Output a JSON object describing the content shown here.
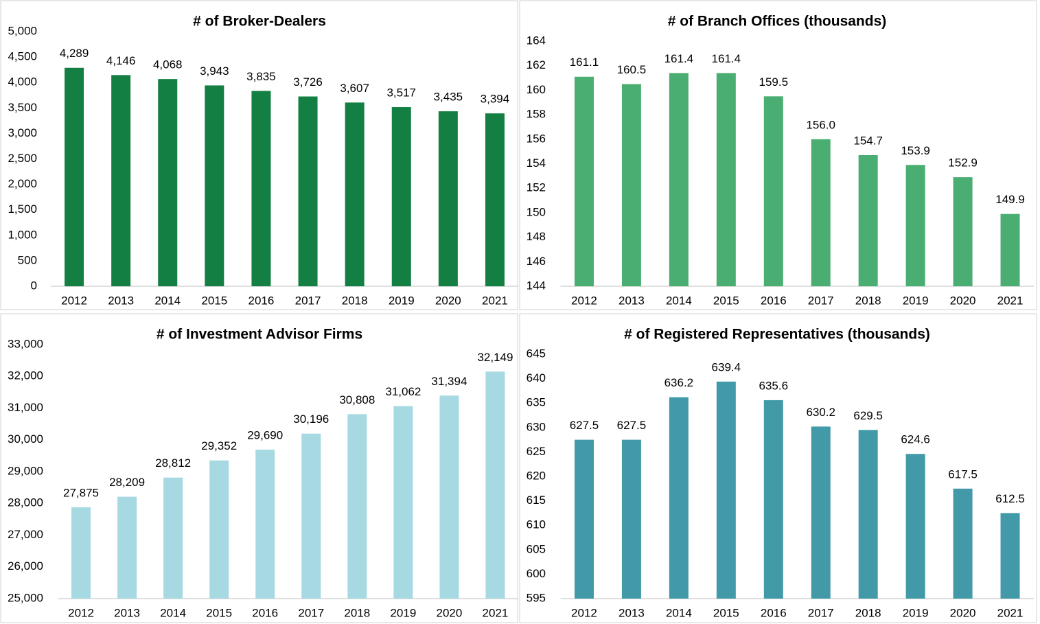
{
  "chart_data": [
    {
      "type": "bar",
      "title": "# of Broker-Dealers",
      "color": "#137f42",
      "categories": [
        "2012",
        "2013",
        "2014",
        "2015",
        "2016",
        "2017",
        "2018",
        "2019",
        "2020",
        "2021"
      ],
      "values": [
        4289,
        4146,
        4068,
        3943,
        3835,
        3726,
        3607,
        3517,
        3435,
        3394
      ],
      "value_labels": [
        "4,289",
        "4,146",
        "4,068",
        "3,943",
        "3,835",
        "3,726",
        "3,607",
        "3,517",
        "3,435",
        "3,394"
      ],
      "ylim": [
        0,
        5000
      ],
      "yticks": [
        0,
        500,
        {
          "value": 1000,
          "label": "1,000"
        },
        {
          "value": 1500,
          "label": "1,500"
        },
        {
          "value": 2000,
          "label": "2,000"
        },
        {
          "value": 2500,
          "label": "2,500"
        },
        {
          "value": 3000,
          "label": "3,000"
        },
        {
          "value": 3500,
          "label": "3,500"
        },
        {
          "value": 4000,
          "label": "4,000"
        },
        {
          "value": 4500,
          "label": "4,500"
        },
        {
          "value": 5000,
          "label": "5,000"
        }
      ]
    },
    {
      "type": "bar",
      "title": "# of Branch Offices (thousands)",
      "color": "#4aae72",
      "categories": [
        "2012",
        "2013",
        "2014",
        "2015",
        "2016",
        "2017",
        "2018",
        "2019",
        "2020",
        "2021"
      ],
      "values": [
        161.1,
        160.5,
        161.4,
        161.4,
        159.5,
        156.0,
        154.7,
        153.9,
        152.9,
        149.9
      ],
      "value_labels": [
        "161.1",
        "160.5",
        "161.4",
        "161.4",
        "159.5",
        "156.0",
        "154.7",
        "153.9",
        "152.9",
        "149.9"
      ],
      "ylim": [
        144,
        164
      ],
      "yticks": [
        144,
        146,
        148,
        150,
        152,
        154,
        156,
        158,
        160,
        162,
        164
      ]
    },
    {
      "type": "bar",
      "title": "# of Investment Advisor Firms",
      "color": "#a6d9e1",
      "categories": [
        "2012",
        "2013",
        "2014",
        "2015",
        "2016",
        "2017",
        "2018",
        "2019",
        "2020",
        "2021"
      ],
      "values": [
        27875,
        28209,
        28812,
        29352,
        29690,
        30196,
        30808,
        31062,
        31394,
        32149
      ],
      "value_labels": [
        "27,875",
        "28,209",
        "28,812",
        "29,352",
        "29,690",
        "30,196",
        "30,808",
        "31,062",
        "31,394",
        "32,149"
      ],
      "ylim": [
        25000,
        33000
      ],
      "yticks": [
        {
          "value": 25000,
          "label": "25,000"
        },
        {
          "value": 26000,
          "label": "26,000"
        },
        {
          "value": 27000,
          "label": "27,000"
        },
        {
          "value": 28000,
          "label": "28,000"
        },
        {
          "value": 29000,
          "label": "29,000"
        },
        {
          "value": 30000,
          "label": "30,000"
        },
        {
          "value": 31000,
          "label": "31,000"
        },
        {
          "value": 32000,
          "label": "32,000"
        },
        {
          "value": 33000,
          "label": "33,000"
        }
      ]
    },
    {
      "type": "bar",
      "title": "# of Registered Representatives (thousands)",
      "color": "#4299a8",
      "categories": [
        "2012",
        "2013",
        "2014",
        "2015",
        "2016",
        "2017",
        "2018",
        "2019",
        "2020",
        "2021"
      ],
      "values": [
        627.5,
        627.5,
        636.2,
        639.4,
        635.6,
        630.2,
        629.5,
        624.6,
        617.5,
        612.5
      ],
      "ylim": [
        595,
        645
      ],
      "yticks": [
        595,
        600,
        605,
        610,
        615,
        620,
        625,
        630,
        635,
        640,
        645
      ]
    }
  ]
}
